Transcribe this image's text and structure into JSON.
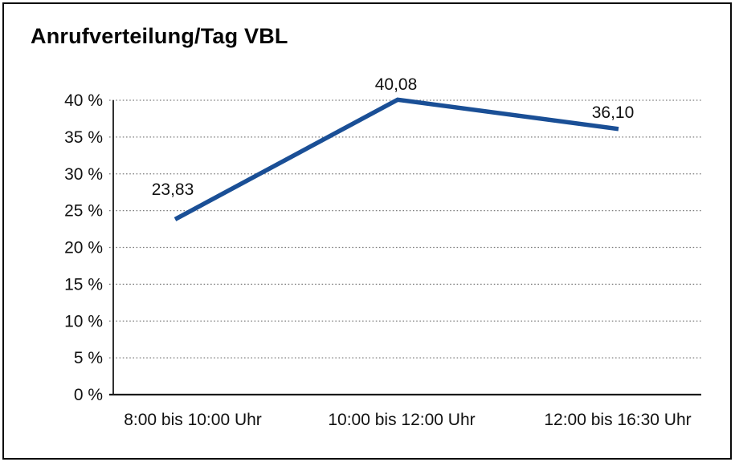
{
  "chart_data": {
    "type": "line",
    "title": "Anrufverteilung/Tag VBL",
    "categories": [
      "8:00 bis 10:00 Uhr",
      "10:00 bis 12:00 Uhr",
      "12:00 bis 16:30 Uhr"
    ],
    "values": [
      23.83,
      40.08,
      36.1
    ],
    "value_labels": [
      "23,83",
      "40,08",
      "36,10"
    ],
    "y_tick_values": [
      0,
      5,
      10,
      15,
      20,
      25,
      30,
      35,
      40
    ],
    "y_tick_labels": [
      "0 %",
      "5 %",
      "10 %",
      "15 %",
      "20 %",
      "25 %",
      "30 %",
      "35 %",
      "40 %"
    ],
    "ylim": [
      0,
      40
    ],
    "xlabel": "",
    "ylabel": "",
    "legend": "none",
    "grid": "horizontal-dotted",
    "line_color": "#1a4f96",
    "grid_color": "#7d7d7d",
    "axis_color": "#1a1a1a",
    "text_color": "#111111"
  }
}
